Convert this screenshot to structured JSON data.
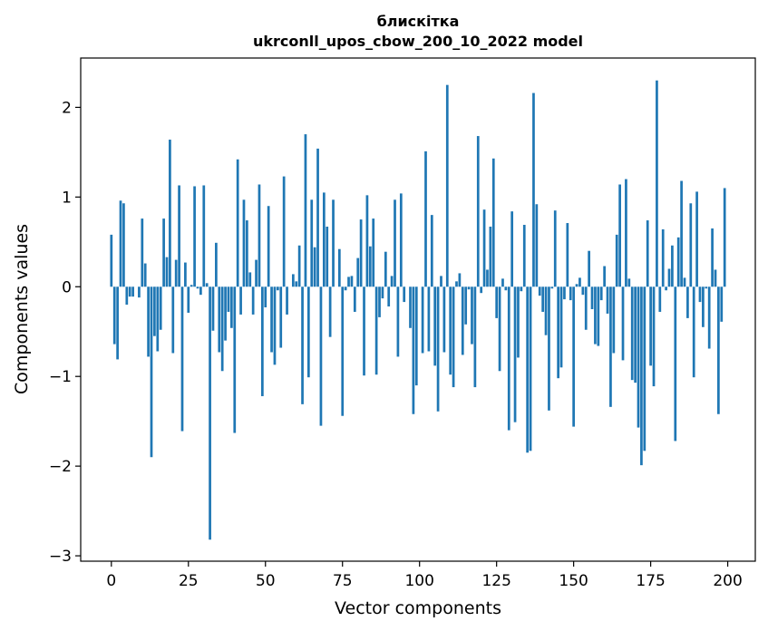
{
  "chart_data": {
    "type": "bar",
    "title": "блискітка",
    "subtitle": "ukrconll_upos_cbow_200_10_2022 model",
    "xlabel": "Vector components",
    "ylabel": "Components values",
    "xlim": [
      -9.95,
      208.95
    ],
    "ylim": [
      -3.06,
      2.55
    ],
    "xticks": [
      0,
      25,
      50,
      75,
      100,
      125,
      150,
      175,
      200
    ],
    "yticks": [
      -3,
      -2,
      -1,
      0,
      1,
      2
    ],
    "ytick_labels": [
      "−3",
      "−2",
      "−1",
      "0",
      "1",
      "2"
    ],
    "grid": false,
    "bar_color": "#1f77b4",
    "x": [
      0,
      1,
      2,
      3,
      4,
      5,
      6,
      7,
      8,
      9,
      10,
      11,
      12,
      13,
      14,
      15,
      16,
      17,
      18,
      19,
      20,
      21,
      22,
      23,
      24,
      25,
      26,
      27,
      28,
      29,
      30,
      31,
      32,
      33,
      34,
      35,
      36,
      37,
      38,
      39,
      40,
      41,
      42,
      43,
      44,
      45,
      46,
      47,
      48,
      49,
      50,
      51,
      52,
      53,
      54,
      55,
      56,
      57,
      58,
      59,
      60,
      61,
      62,
      63,
      64,
      65,
      66,
      67,
      68,
      69,
      70,
      71,
      72,
      73,
      74,
      75,
      76,
      77,
      78,
      79,
      80,
      81,
      82,
      83,
      84,
      85,
      86,
      87,
      88,
      89,
      90,
      91,
      92,
      93,
      94,
      95,
      96,
      97,
      98,
      99,
      100,
      101,
      102,
      103,
      104,
      105,
      106,
      107,
      108,
      109,
      110,
      111,
      112,
      113,
      114,
      115,
      116,
      117,
      118,
      119,
      120,
      121,
      122,
      123,
      124,
      125,
      126,
      127,
      128,
      129,
      130,
      131,
      132,
      133,
      134,
      135,
      136,
      137,
      138,
      139,
      140,
      141,
      142,
      143,
      144,
      145,
      146,
      147,
      148,
      149,
      150,
      151,
      152,
      153,
      154,
      155,
      156,
      157,
      158,
      159,
      160,
      161,
      162,
      163,
      164,
      165,
      166,
      167,
      168,
      169,
      170,
      171,
      172,
      173,
      174,
      175,
      176,
      177,
      178,
      179,
      180,
      181,
      182,
      183,
      184,
      185,
      186,
      187,
      188,
      189,
      190,
      191,
      192,
      193,
      194,
      195,
      196,
      197,
      198,
      199
    ],
    "values": [
      0.58,
      -0.64,
      -0.81,
      0.96,
      0.93,
      -0.2,
      -0.11,
      -0.11,
      0.0,
      -0.12,
      0.76,
      0.26,
      -0.78,
      -1.9,
      -0.55,
      -0.72,
      -0.48,
      0.76,
      0.33,
      1.64,
      -0.74,
      0.3,
      1.13,
      -1.61,
      0.27,
      -0.29,
      0.02,
      1.12,
      -0.02,
      -0.09,
      1.13,
      0.04,
      -2.82,
      -0.49,
      0.49,
      -0.73,
      -0.94,
      -0.6,
      -0.28,
      -0.46,
      -1.63,
      1.42,
      -0.31,
      0.97,
      0.74,
      0.16,
      -0.31,
      0.3,
      1.14,
      -1.22,
      -0.23,
      0.9,
      -0.73,
      -0.87,
      -0.04,
      -0.68,
      1.23,
      -0.31,
      0.0,
      0.14,
      0.06,
      0.46,
      -1.31,
      1.7,
      -1.01,
      0.97,
      0.44,
      1.54,
      -1.55,
      1.05,
      0.67,
      -0.56,
      0.97,
      0.0,
      0.42,
      -1.44,
      -0.04,
      0.11,
      0.12,
      -0.28,
      0.32,
      0.75,
      -0.99,
      1.02,
      0.45,
      0.76,
      -0.98,
      -0.34,
      -0.13,
      0.39,
      -0.22,
      0.12,
      0.97,
      -0.78,
      1.04,
      -0.17,
      0.0,
      -0.46,
      -1.42,
      -1.1,
      0.0,
      -0.74,
      1.51,
      -0.72,
      0.8,
      -0.88,
      -1.39,
      0.12,
      -0.73,
      2.25,
      -0.98,
      -1.12,
      0.06,
      0.15,
      -0.76,
      -0.42,
      -0.03,
      -0.64,
      -1.12,
      1.68,
      -0.07,
      0.86,
      0.19,
      0.67,
      1.43,
      -0.35,
      -0.94,
      0.09,
      -0.04,
      -1.6,
      0.84,
      -1.51,
      -0.79,
      -0.05,
      0.69,
      -1.85,
      -1.83,
      2.16,
      0.92,
      -0.1,
      -0.28,
      -0.54,
      -1.38,
      -0.02,
      0.85,
      -1.02,
      -0.9,
      -0.14,
      0.71,
      -0.15,
      -1.56,
      0.03,
      0.1,
      -0.09,
      -0.48,
      0.4,
      -0.25,
      -0.64,
      -0.66,
      -0.15,
      0.23,
      -0.3,
      -1.34,
      -0.74,
      0.58,
      1.14,
      -0.82,
      1.2,
      0.09,
      -1.04,
      -1.07,
      -1.57,
      -1.99,
      -1.83,
      0.74,
      -0.88,
      -1.11,
      2.3,
      -0.28,
      0.64,
      -0.04,
      0.2,
      0.46,
      -1.72,
      0.55,
      1.18,
      0.1,
      -0.35,
      0.93,
      -1.01,
      1.06,
      -0.17,
      -0.45,
      -0.02,
      -0.69,
      0.65,
      0.19,
      -1.42,
      -0.39,
      1.1
    ]
  }
}
